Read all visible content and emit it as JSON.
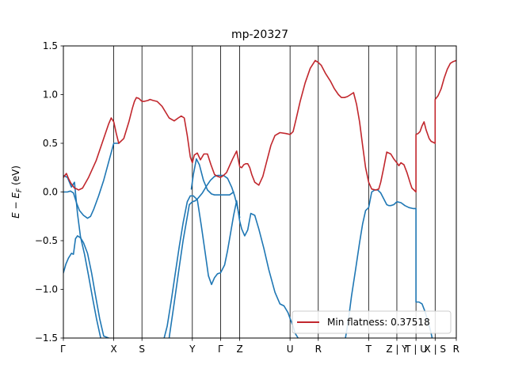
{
  "chart_data": {
    "type": "line",
    "title": "mp-20327",
    "ylabel": "E − E_F (eV)",
    "ylim": [
      -1.5,
      1.5
    ],
    "yticks": [
      -1.5,
      -1.0,
      -0.5,
      0.0,
      0.5,
      1.0,
      1.5
    ],
    "ytick_labels": [
      "−1.5",
      "−1.0",
      "−0.5",
      "0.0",
      "0.5",
      "1.0",
      "1.5"
    ],
    "xlim": [
      0,
      7.8
    ],
    "kpoints": [
      {
        "label": "Γ",
        "x": 0.0
      },
      {
        "label": "X",
        "x": 1.0
      },
      {
        "label": "S",
        "x": 1.56
      },
      {
        "label": "Y",
        "x": 2.56
      },
      {
        "label": "Γ",
        "x": 3.12
      },
      {
        "label": "Z",
        "x": 3.5
      },
      {
        "label": "U",
        "x": 4.5
      },
      {
        "label": "R",
        "x": 5.06
      },
      {
        "label": "T",
        "x": 6.06
      },
      {
        "label": "Z | Y",
        "x": 6.62
      },
      {
        "label": "T | U",
        "x": 7.0
      },
      {
        "label": "X | S",
        "x": 7.38
      },
      {
        "label": "R",
        "x": 7.8
      }
    ],
    "legend": {
      "label": "Min flatness: 0.37518",
      "placement": "lower right"
    },
    "colors": {
      "highlight": "#c1272d",
      "bands": "#1f77b4"
    },
    "series": [
      {
        "role": "highlight",
        "x": [
          0.0,
          0.06,
          0.1,
          0.15,
          0.22,
          0.27,
          0.3,
          0.38,
          0.5,
          0.65,
          0.8,
          0.9,
          0.95,
          1.0,
          1.05,
          1.1,
          1.2,
          1.3,
          1.37,
          1.41,
          1.45,
          1.5,
          1.56,
          1.6,
          1.68,
          1.72,
          1.78,
          1.86,
          1.96,
          2.1,
          2.2,
          2.28,
          2.34,
          2.4,
          2.46,
          2.52,
          2.56,
          2.6,
          2.66,
          2.72,
          2.79,
          2.86,
          2.93,
          3.0,
          3.06,
          3.12,
          3.18,
          3.24,
          3.3,
          3.36,
          3.44,
          3.5,
          3.54,
          3.58,
          3.62,
          3.66,
          3.7,
          3.74,
          3.8,
          3.88,
          3.96,
          4.04,
          4.12,
          4.2,
          4.3,
          4.42,
          4.5,
          4.56,
          4.62,
          4.7,
          4.8,
          4.9,
          5.0,
          5.06,
          5.12,
          5.2,
          5.3,
          5.38,
          5.46,
          5.52,
          5.58,
          5.64,
          5.7,
          5.76,
          5.82,
          5.88,
          5.94,
          6.0,
          6.06,
          6.12,
          6.2,
          6.26,
          6.3,
          6.36,
          6.42,
          6.5,
          6.56,
          6.62,
          6.66,
          6.7,
          6.76,
          6.82,
          6.88,
          6.92,
          6.96,
          7.0,
          7.0,
          7.04,
          7.08,
          7.12,
          7.16,
          7.2,
          7.26,
          7.3,
          7.38,
          7.38,
          7.44,
          7.5,
          7.56,
          7.62,
          7.68,
          7.74,
          7.8
        ],
        "y": [
          0.15,
          0.19,
          0.14,
          0.09,
          0.04,
          0.03,
          0.02,
          0.04,
          0.15,
          0.32,
          0.55,
          0.7,
          0.76,
          0.72,
          0.6,
          0.5,
          0.55,
          0.72,
          0.86,
          0.93,
          0.97,
          0.96,
          0.93,
          0.93,
          0.94,
          0.95,
          0.94,
          0.93,
          0.88,
          0.76,
          0.73,
          0.76,
          0.78,
          0.76,
          0.58,
          0.36,
          0.3,
          0.38,
          0.4,
          0.33,
          0.39,
          0.39,
          0.28,
          0.18,
          0.16,
          0.15,
          0.17,
          0.2,
          0.27,
          0.34,
          0.42,
          0.26,
          0.25,
          0.28,
          0.29,
          0.29,
          0.25,
          0.18,
          0.1,
          0.07,
          0.16,
          0.32,
          0.48,
          0.58,
          0.61,
          0.6,
          0.59,
          0.62,
          0.75,
          0.93,
          1.12,
          1.27,
          1.35,
          1.33,
          1.3,
          1.22,
          1.14,
          1.06,
          1.0,
          0.97,
          0.97,
          0.98,
          1.0,
          1.02,
          0.9,
          0.72,
          0.48,
          0.25,
          0.1,
          0.03,
          0.02,
          0.03,
          0.1,
          0.25,
          0.41,
          0.39,
          0.34,
          0.3,
          0.27,
          0.3,
          0.28,
          0.2,
          0.1,
          0.04,
          0.02,
          0.0,
          0.59,
          0.6,
          0.62,
          0.68,
          0.72,
          0.64,
          0.55,
          0.52,
          0.5,
          0.95,
          0.99,
          1.06,
          1.17,
          1.26,
          1.32,
          1.34,
          1.35
        ]
      },
      {
        "role": "band",
        "x": [
          0.0,
          0.08,
          0.14,
          0.2,
          0.26,
          0.32,
          0.4,
          0.48,
          0.54,
          0.6,
          0.7,
          0.8,
          0.9,
          1.0,
          1.05,
          1.1
        ],
        "y": [
          0.0,
          0.0,
          0.01,
          -0.01,
          -0.11,
          -0.19,
          -0.24,
          -0.27,
          -0.25,
          -0.18,
          -0.04,
          0.12,
          0.31,
          0.5,
          0.5,
          0.5
        ]
      },
      {
        "role": "band",
        "x": [
          0.0,
          0.05,
          0.1,
          0.16,
          0.2,
          0.24,
          0.28,
          0.34,
          0.4,
          0.48,
          0.56,
          0.64,
          0.72,
          0.8,
          0.9
        ],
        "y": [
          -0.83,
          -0.74,
          -0.68,
          -0.63,
          -0.64,
          -0.48,
          -0.45,
          -0.47,
          -0.52,
          -0.63,
          -0.83,
          -1.07,
          -1.3,
          -1.48,
          -1.5
        ]
      },
      {
        "role": "band",
        "x": [
          0.0,
          0.08,
          0.16,
          0.22,
          0.28,
          0.34,
          0.42,
          0.5,
          0.58,
          0.66,
          0.74
        ],
        "y": [
          0.17,
          0.15,
          0.05,
          0.1,
          -0.22,
          -0.46,
          -0.64,
          -0.86,
          -1.09,
          -1.31,
          -1.5
        ]
      },
      {
        "role": "band",
        "x": [
          2.0,
          2.06,
          2.14,
          2.22,
          2.3,
          2.38,
          2.46,
          2.52,
          2.58,
          2.66,
          2.74,
          2.82,
          2.88,
          2.94,
          3.0,
          3.06,
          3.12,
          3.2,
          3.26,
          3.32,
          3.38,
          3.44,
          3.5,
          3.54,
          3.6,
          3.66,
          3.72,
          3.8,
          3.88,
          3.98,
          4.08,
          4.2,
          4.3,
          4.38,
          4.46,
          4.5,
          4.56,
          4.6,
          4.66
        ],
        "y": [
          -1.5,
          -1.38,
          -1.12,
          -0.84,
          -0.56,
          -0.31,
          -0.1,
          -0.04,
          -0.04,
          -0.08,
          -0.35,
          -0.64,
          -0.86,
          -0.95,
          -0.88,
          -0.84,
          -0.83,
          -0.75,
          -0.6,
          -0.42,
          -0.24,
          -0.09,
          -0.3,
          -0.38,
          -0.45,
          -0.39,
          -0.22,
          -0.24,
          -0.38,
          -0.58,
          -0.8,
          -1.03,
          -1.15,
          -1.17,
          -1.24,
          -1.3,
          -1.38,
          -1.45,
          -1.5
        ]
      },
      {
        "role": "band",
        "x": [
          2.1,
          2.2,
          2.3,
          2.38,
          2.44,
          2.5,
          2.56,
          2.62,
          2.68,
          2.76,
          2.84,
          2.92,
          3.0,
          3.06,
          3.12,
          3.18,
          3.26,
          3.34,
          3.4,
          3.44,
          3.5
        ],
        "y": [
          -1.5,
          -1.14,
          -0.77,
          -0.49,
          -0.31,
          -0.13,
          -0.1,
          -0.09,
          -0.06,
          -0.01,
          0.06,
          0.12,
          0.16,
          0.17,
          0.17,
          0.17,
          0.14,
          0.05,
          -0.04,
          -0.12,
          -0.26
        ]
      },
      {
        "role": "band",
        "x": [
          2.54,
          2.58,
          2.64,
          2.7,
          2.78,
          2.86,
          2.94,
          3.0,
          3.06,
          3.12,
          3.2,
          3.3,
          3.38
        ],
        "y": [
          0.03,
          0.18,
          0.34,
          0.28,
          0.12,
          0.02,
          -0.02,
          -0.03,
          -0.03,
          -0.03,
          -0.03,
          -0.03,
          0.0
        ]
      },
      {
        "role": "band",
        "x": [
          5.6,
          5.66,
          5.72,
          5.8,
          5.88,
          5.94,
          6.0,
          6.06,
          6.12,
          6.18,
          6.24,
          6.3,
          6.36,
          6.42,
          6.46,
          6.5,
          6.56,
          6.62,
          6.7,
          6.78,
          6.86,
          6.94,
          7.0,
          7.0,
          7.06,
          7.12,
          7.18,
          7.26,
          7.3,
          7.32
        ],
        "y": [
          -1.5,
          -1.31,
          -1.07,
          -0.8,
          -0.52,
          -0.33,
          -0.19,
          -0.16,
          0.0,
          0.02,
          0.02,
          -0.01,
          -0.07,
          -0.13,
          -0.14,
          -0.14,
          -0.13,
          -0.1,
          -0.11,
          -0.14,
          -0.16,
          -0.17,
          -0.17,
          -1.13,
          -1.13,
          -1.15,
          -1.23,
          -1.37,
          -1.45,
          -1.5
        ]
      }
    ]
  }
}
